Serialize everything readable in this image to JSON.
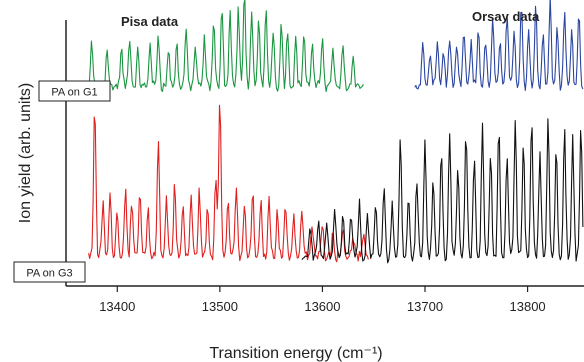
{
  "chart_data": {
    "type": "line",
    "xlabel": "Transition energy (cm⁻¹)",
    "ylabel": "Ion yield (arb. units)",
    "x_ticks": [
      13400,
      13500,
      13600,
      13700,
      13800
    ],
    "xlim": [
      13350,
      13855
    ],
    "grid": false,
    "annotations": {
      "pisa": "Pisa data",
      "orsay": "Orsay data",
      "g1": "PA on G1",
      "g3": "PA on G3"
    },
    "series": [
      {
        "name": "PA on G1",
        "color": "#1a9641",
        "x_range": [
          13355,
          13640
        ],
        "baseline": 0.74,
        "peaks": [
          [
            13375,
            0.16
          ],
          [
            13390,
            0.15
          ],
          [
            13404,
            0.14
          ],
          [
            13412,
            0.19
          ],
          [
            13420,
            0.13
          ],
          [
            13432,
            0.17
          ],
          [
            13440,
            0.2
          ],
          [
            13450,
            0.14
          ],
          [
            13458,
            0.16
          ],
          [
            13467,
            0.22
          ],
          [
            13476,
            0.15
          ],
          [
            13485,
            0.18
          ],
          [
            13494,
            0.24
          ],
          [
            13502,
            0.31
          ],
          [
            13510,
            0.28
          ],
          [
            13518,
            0.29
          ],
          [
            13524,
            0.36
          ],
          [
            13531,
            0.26
          ],
          [
            13538,
            0.25
          ],
          [
            13545,
            0.28
          ],
          [
            13552,
            0.22
          ],
          [
            13560,
            0.24
          ],
          [
            13566,
            0.21
          ],
          [
            13574,
            0.18
          ],
          [
            13582,
            0.2
          ],
          [
            13590,
            0.16
          ],
          [
            13600,
            0.19
          ],
          [
            13610,
            0.14
          ],
          [
            13620,
            0.15
          ],
          [
            13630,
            0.12
          ]
        ]
      },
      {
        "name": "PA on G1",
        "color": "#2b46a0",
        "x_range": [
          13690,
          13855
        ],
        "baseline": 0.74,
        "peaks": [
          [
            13698,
            0.16
          ],
          [
            13705,
            0.12
          ],
          [
            13712,
            0.18
          ],
          [
            13718,
            0.14
          ],
          [
            13724,
            0.19
          ],
          [
            13731,
            0.15
          ],
          [
            13738,
            0.21
          ],
          [
            13745,
            0.16
          ],
          [
            13752,
            0.22
          ],
          [
            13759,
            0.17
          ],
          [
            13766,
            0.25
          ],
          [
            13773,
            0.18
          ],
          [
            13780,
            0.28
          ],
          [
            13787,
            0.2
          ],
          [
            13794,
            0.32
          ],
          [
            13801,
            0.22
          ],
          [
            13808,
            0.3
          ],
          [
            13815,
            0.21
          ],
          [
            13822,
            0.33
          ],
          [
            13829,
            0.22
          ],
          [
            13836,
            0.3
          ],
          [
            13843,
            0.22
          ],
          [
            13850,
            0.27
          ]
        ]
      },
      {
        "name": "PA on G3",
        "color": "#e02020",
        "x_range": [
          13372,
          13645
        ],
        "baseline": 0.1,
        "peaks": [
          [
            13378,
            0.58
          ],
          [
            13386,
            0.2
          ],
          [
            13393,
            0.24
          ],
          [
            13400,
            0.18
          ],
          [
            13408,
            0.27
          ],
          [
            13414,
            0.2
          ],
          [
            13422,
            0.25
          ],
          [
            13430,
            0.17
          ],
          [
            13440,
            0.44
          ],
          [
            13448,
            0.22
          ],
          [
            13456,
            0.28
          ],
          [
            13464,
            0.19
          ],
          [
            13472,
            0.23
          ],
          [
            13480,
            0.25
          ],
          [
            13488,
            0.18
          ],
          [
            13496,
            0.3
          ],
          [
            13500,
            0.62
          ],
          [
            13508,
            0.22
          ],
          [
            13516,
            0.26
          ],
          [
            13524,
            0.19
          ],
          [
            13532,
            0.24
          ],
          [
            13540,
            0.2
          ],
          [
            13548,
            0.22
          ],
          [
            13556,
            0.18
          ],
          [
            13564,
            0.2
          ],
          [
            13572,
            0.16
          ],
          [
            13580,
            0.18
          ],
          [
            13590,
            0.12
          ],
          [
            13600,
            0.14
          ],
          [
            13610,
            0.1
          ],
          [
            13620,
            0.12
          ],
          [
            13630,
            0.08
          ],
          [
            13640,
            0.07
          ]
        ]
      },
      {
        "name": "PA on G3",
        "color": "#111111",
        "x_range": [
          13580,
          13855
        ],
        "baseline": 0.1,
        "peaks": [
          [
            13588,
            0.12
          ],
          [
            13596,
            0.14
          ],
          [
            13604,
            0.12
          ],
          [
            13612,
            0.17
          ],
          [
            13620,
            0.15
          ],
          [
            13628,
            0.16
          ],
          [
            13636,
            0.2
          ],
          [
            13644,
            0.15
          ],
          [
            13652,
            0.18
          ],
          [
            13660,
            0.26
          ],
          [
            13668,
            0.2
          ],
          [
            13676,
            0.45
          ],
          [
            13684,
            0.22
          ],
          [
            13692,
            0.3
          ],
          [
            13700,
            0.46
          ],
          [
            13708,
            0.3
          ],
          [
            13716,
            0.4
          ],
          [
            13724,
            0.47
          ],
          [
            13732,
            0.34
          ],
          [
            13740,
            0.48
          ],
          [
            13748,
            0.38
          ],
          [
            13756,
            0.5
          ],
          [
            13764,
            0.4
          ],
          [
            13772,
            0.5
          ],
          [
            13780,
            0.38
          ],
          [
            13788,
            0.52
          ],
          [
            13796,
            0.42
          ],
          [
            13804,
            0.52
          ],
          [
            13812,
            0.4
          ],
          [
            13820,
            0.53
          ],
          [
            13828,
            0.42
          ],
          [
            13836,
            0.5
          ],
          [
            13844,
            0.44
          ],
          [
            13852,
            0.48
          ]
        ]
      }
    ]
  }
}
